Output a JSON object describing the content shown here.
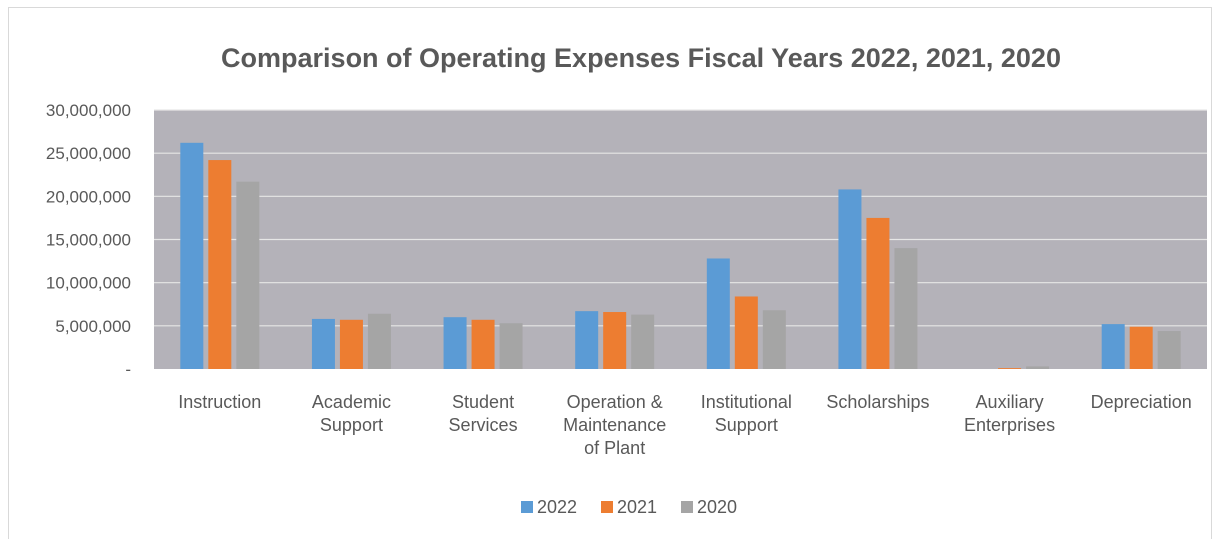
{
  "chart_data": {
    "type": "bar",
    "title": "Comparison of Operating Expenses Fiscal Years 2022, 2021, 2020",
    "xlabel": "",
    "ylabel": "",
    "categories": [
      [
        "Instruction"
      ],
      [
        "Academic",
        "Support"
      ],
      [
        "Student",
        "Services"
      ],
      [
        "Operation &",
        "Maintenance",
        "of Plant"
      ],
      [
        "Institutional",
        "Support"
      ],
      [
        "Scholarships"
      ],
      [
        "Auxiliary",
        "Enterprises"
      ],
      [
        "Depreciation"
      ]
    ],
    "series": [
      {
        "name": "2022",
        "color": "#5b9bd5",
        "values": [
          26200000,
          5800000,
          6000000,
          6700000,
          12800000,
          20800000,
          0,
          5200000
        ]
      },
      {
        "name": "2021",
        "color": "#ed7d31",
        "values": [
          24200000,
          5700000,
          5700000,
          6600000,
          8400000,
          17500000,
          100000,
          4900000
        ]
      },
      {
        "name": "2020",
        "color": "#a5a5a5",
        "values": [
          21700000,
          6400000,
          5300000,
          6300000,
          6800000,
          14000000,
          300000,
          4400000
        ]
      }
    ],
    "ylim": [
      0,
      30000000
    ],
    "yticks": [
      0,
      5000000,
      10000000,
      15000000,
      20000000,
      25000000,
      30000000
    ],
    "ytick_labels": [
      "-",
      "5,000,000",
      "10,000,000",
      "15,000,000",
      "20,000,000",
      "25,000,000",
      "30,000,000"
    ],
    "plot_background": "#b4b2b9",
    "gridlines": true,
    "legend_position": "bottom"
  }
}
